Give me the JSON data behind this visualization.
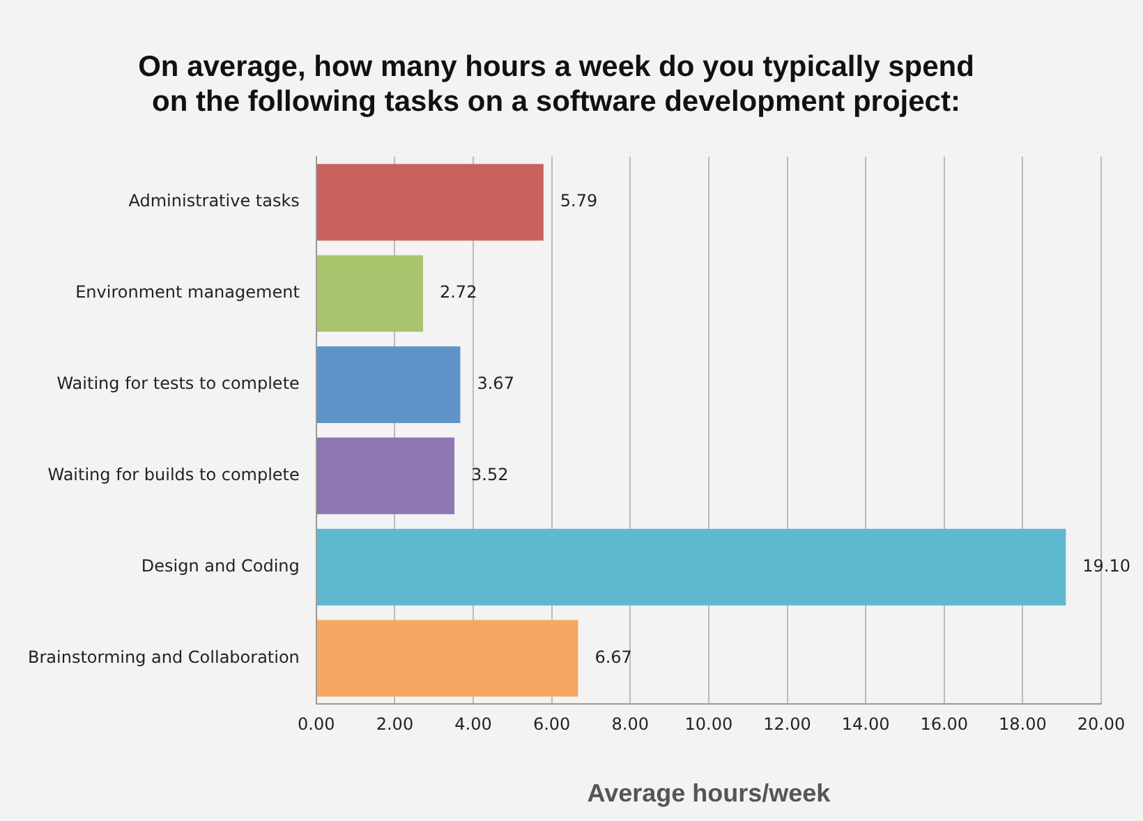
{
  "chart_data": {
    "type": "bar",
    "orientation": "horizontal",
    "title": [
      "On average, how many hours a week do you typically spend",
      "on the following tasks on a software development project:"
    ],
    "xlabel": "Average hours/week",
    "categories": [
      "Administrative tasks",
      "Environment management",
      "Waiting for tests to complete",
      "Waiting for builds to complete",
      "Design and Coding",
      "Brainstorming and Collaboration"
    ],
    "values": [
      5.79,
      2.72,
      3.67,
      3.52,
      19.1,
      6.67
    ],
    "value_labels": [
      "5.79",
      "2.72",
      "3.67",
      "3.52",
      "19.10",
      "6.67"
    ],
    "colors": [
      "#c9625f",
      "#aac46e",
      "#5f94c9",
      "#8e76b1",
      "#5eb9d0",
      "#f6a862"
    ],
    "xlim": [
      0,
      20
    ],
    "xticks": [
      {
        "value": 0,
        "label": "0.00"
      },
      {
        "value": 2,
        "label": "2.00"
      },
      {
        "value": 4,
        "label": "4.00"
      },
      {
        "value": 6,
        "label": "6.00"
      },
      {
        "value": 8,
        "label": "8.00"
      },
      {
        "value": 10,
        "label": "10.00"
      },
      {
        "value": 12,
        "label": "12.00"
      },
      {
        "value": 14,
        "label": "14.00"
      },
      {
        "value": 16,
        "label": "16.00"
      },
      {
        "value": 18,
        "label": "18.00"
      },
      {
        "value": 20,
        "label": "20.00"
      }
    ],
    "grid": "x",
    "legend": false
  }
}
